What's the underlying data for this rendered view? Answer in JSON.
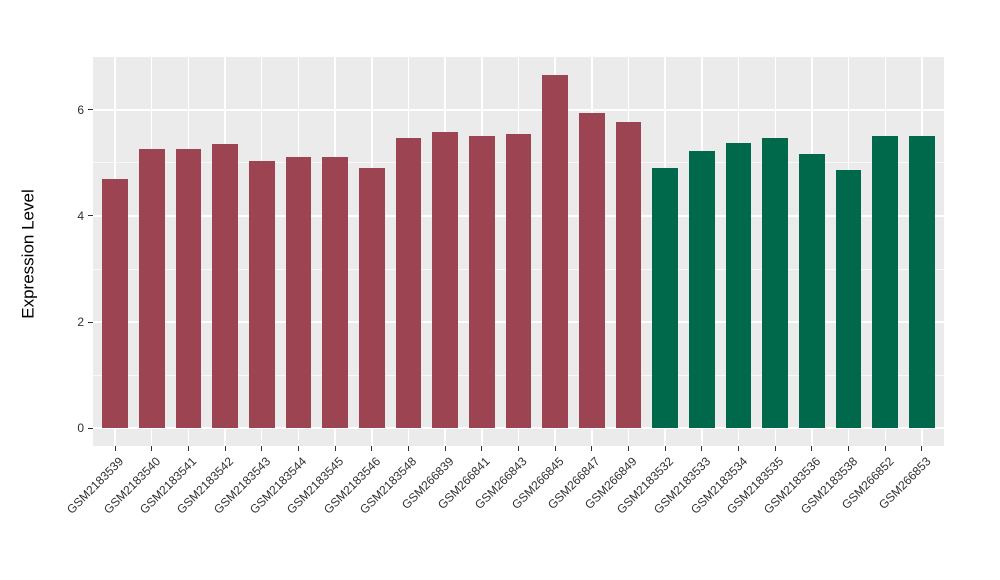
{
  "chart_data": {
    "type": "bar",
    "title": "",
    "xlabel": "",
    "ylabel": "Expression Level",
    "categories": [
      "GSM2183539",
      "GSM2183540",
      "GSM2183541",
      "GSM2183542",
      "GSM2183543",
      "GSM2183544",
      "GSM2183545",
      "GSM2183546",
      "GSM2183548",
      "GSM266839",
      "GSM266841",
      "GSM266843",
      "GSM266845",
      "GSM266847",
      "GSM266849",
      "GSM2183532",
      "GSM2183533",
      "GSM2183534",
      "GSM2183535",
      "GSM2183536",
      "GSM2183538",
      "GSM266852",
      "GSM266853"
    ],
    "values": [
      4.7,
      5.25,
      5.25,
      5.36,
      5.04,
      5.11,
      5.11,
      4.9,
      5.47,
      5.57,
      5.51,
      5.55,
      6.66,
      5.93,
      5.77,
      4.91,
      5.23,
      5.37,
      5.47,
      5.16,
      4.86,
      5.51,
      5.51
    ],
    "groups": [
      "group1",
      "group1",
      "group1",
      "group1",
      "group1",
      "group1",
      "group1",
      "group1",
      "group1",
      "group1",
      "group1",
      "group1",
      "group1",
      "group1",
      "group1",
      "group2",
      "group2",
      "group2",
      "group2",
      "group2",
      "group2",
      "group2",
      "group2"
    ],
    "group_colors": {
      "group1": "#9D4453",
      "group2": "#00684B"
    },
    "yticks": [
      0,
      2,
      4,
      6
    ],
    "minor_yticks": [
      1,
      3,
      5,
      7
    ],
    "ylim": [
      -0.33,
      6.99
    ],
    "bar_width_fraction": 0.7,
    "grid": true,
    "legend_position": "none",
    "panel_bg": "#EBEBEB",
    "grid_major_color": "#FFFFFF",
    "grid_minor_color": "#FFFFFF",
    "tick_color": "#333333",
    "figure_bg": "#FFFFFF"
  }
}
